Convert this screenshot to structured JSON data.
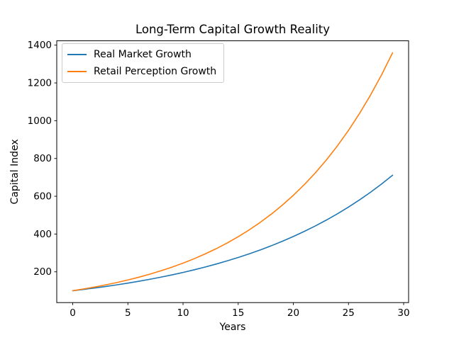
{
  "chart_data": {
    "type": "line",
    "title": "Long-Term Capital Growth Reality",
    "xlabel": "Years",
    "ylabel": "Capital Index",
    "x": [
      0,
      1,
      2,
      3,
      4,
      5,
      6,
      7,
      8,
      9,
      10,
      11,
      12,
      13,
      14,
      15,
      16,
      17,
      18,
      19,
      20,
      21,
      22,
      23,
      24,
      25,
      26,
      27,
      28,
      29
    ],
    "series": [
      {
        "name": "Real Market Growth",
        "color": "#1f77b4",
        "values": [
          100.0,
          107.0,
          114.5,
          122.5,
          131.1,
          140.3,
          150.1,
          160.6,
          171.8,
          183.8,
          196.7,
          210.5,
          225.2,
          241.0,
          257.9,
          275.9,
          295.2,
          315.9,
          338.0,
          361.7,
          387.0,
          414.1,
          443.0,
          474.1,
          507.2,
          542.7,
          580.7,
          621.4,
          664.9,
          711.4
        ]
      },
      {
        "name": "Retail Perception Growth",
        "color": "#ff7f0e",
        "values": [
          100.0,
          109.4,
          119.7,
          131.0,
          143.3,
          156.8,
          171.6,
          187.8,
          205.4,
          224.8,
          246.0,
          269.1,
          294.5,
          322.2,
          352.5,
          385.7,
          422.1,
          461.8,
          505.3,
          552.9,
          605.0,
          661.9,
          724.3,
          792.5,
          867.1,
          948.8,
          1038.1,
          1135.9,
          1242.9,
          1359.9
        ]
      }
    ],
    "xticks": [
      0,
      5,
      10,
      15,
      20,
      25,
      30
    ],
    "yticks": [
      200,
      400,
      600,
      800,
      1000,
      1200,
      1400
    ],
    "xlim": [
      -1.45,
      30.45
    ],
    "ylim": [
      37.0,
      1423.0
    ],
    "grid": false,
    "legend_position": "upper left",
    "background_color": "#ffffff",
    "spine_color": "#000000"
  }
}
